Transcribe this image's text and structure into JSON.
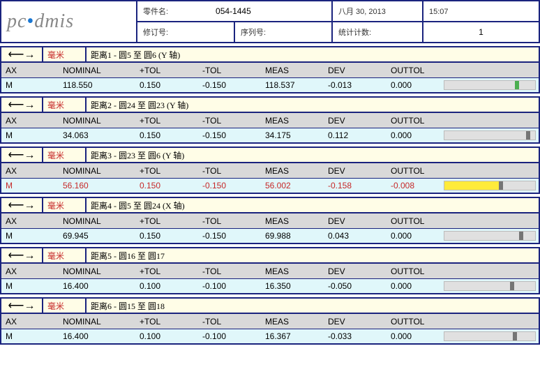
{
  "header": {
    "logo_pc": "pc",
    "logo_dot": "•",
    "logo_dmis": "dmis",
    "part_label": "零件名:",
    "part_value": "054-1445",
    "date": "八月 30, 2013",
    "time": "15:07",
    "rev_label": "修订号:",
    "serial_label": "序列号:",
    "stats_label": "统计计数:",
    "stats_value": "1"
  },
  "columns": {
    "ax": "AX",
    "nominal": "NOMINAL",
    "ptol": "+TOL",
    "mtol": "-TOL",
    "meas": "MEAS",
    "dev": "DEV",
    "outtol": "OUTTOL"
  },
  "unit": "毫米",
  "arrow": "⟵→",
  "sections": [
    {
      "desc": "距离1 - 圆5 至 圆6 (Y 轴)",
      "ax": "M",
      "nominal": "118.550",
      "ptol": "0.150",
      "mtol": "-0.150",
      "meas": "118.537",
      "dev": "-0.013",
      "outtol": "0.000",
      "barType": "green",
      "markerPos": 78
    },
    {
      "desc": "距离2 - 圆24 至 圆23 (Y 轴)",
      "ax": "M",
      "nominal": "34.063",
      "ptol": "0.150",
      "mtol": "-0.150",
      "meas": "34.175",
      "dev": "0.112",
      "outtol": "0.000",
      "barType": "gray",
      "markerPos": 90
    },
    {
      "desc": "距离3 - 圆23 至 圆6 (Y 轴)",
      "ax": "M",
      "nominal": "56.160",
      "ptol": "0.150",
      "mtol": "-0.150",
      "meas": "56.002",
      "dev": "-0.158",
      "outtol": "-0.008",
      "barType": "yellow",
      "fillWidth": 60,
      "markerPos": 60,
      "outOfTol": true
    },
    {
      "desc": "距离4 - 圆5 至 圆24 (X 轴)",
      "ax": "M",
      "nominal": "69.945",
      "ptol": "0.150",
      "mtol": "-0.150",
      "meas": "69.988",
      "dev": "0.043",
      "outtol": "0.000",
      "barType": "gray",
      "markerPos": 82
    },
    {
      "desc": "距离5 - 圆16 至 圆17",
      "ax": "M",
      "nominal": "16.400",
      "ptol": "0.100",
      "mtol": "-0.100",
      "meas": "16.350",
      "dev": "-0.050",
      "outtol": "0.000",
      "barType": "gray",
      "markerPos": 72
    },
    {
      "desc": "距离6 - 圆15 至 圆18",
      "ax": "M",
      "nominal": "16.400",
      "ptol": "0.100",
      "mtol": "-0.100",
      "meas": "16.367",
      "dev": "-0.033",
      "outtol": "0.000",
      "barType": "gray",
      "markerPos": 75
    }
  ]
}
